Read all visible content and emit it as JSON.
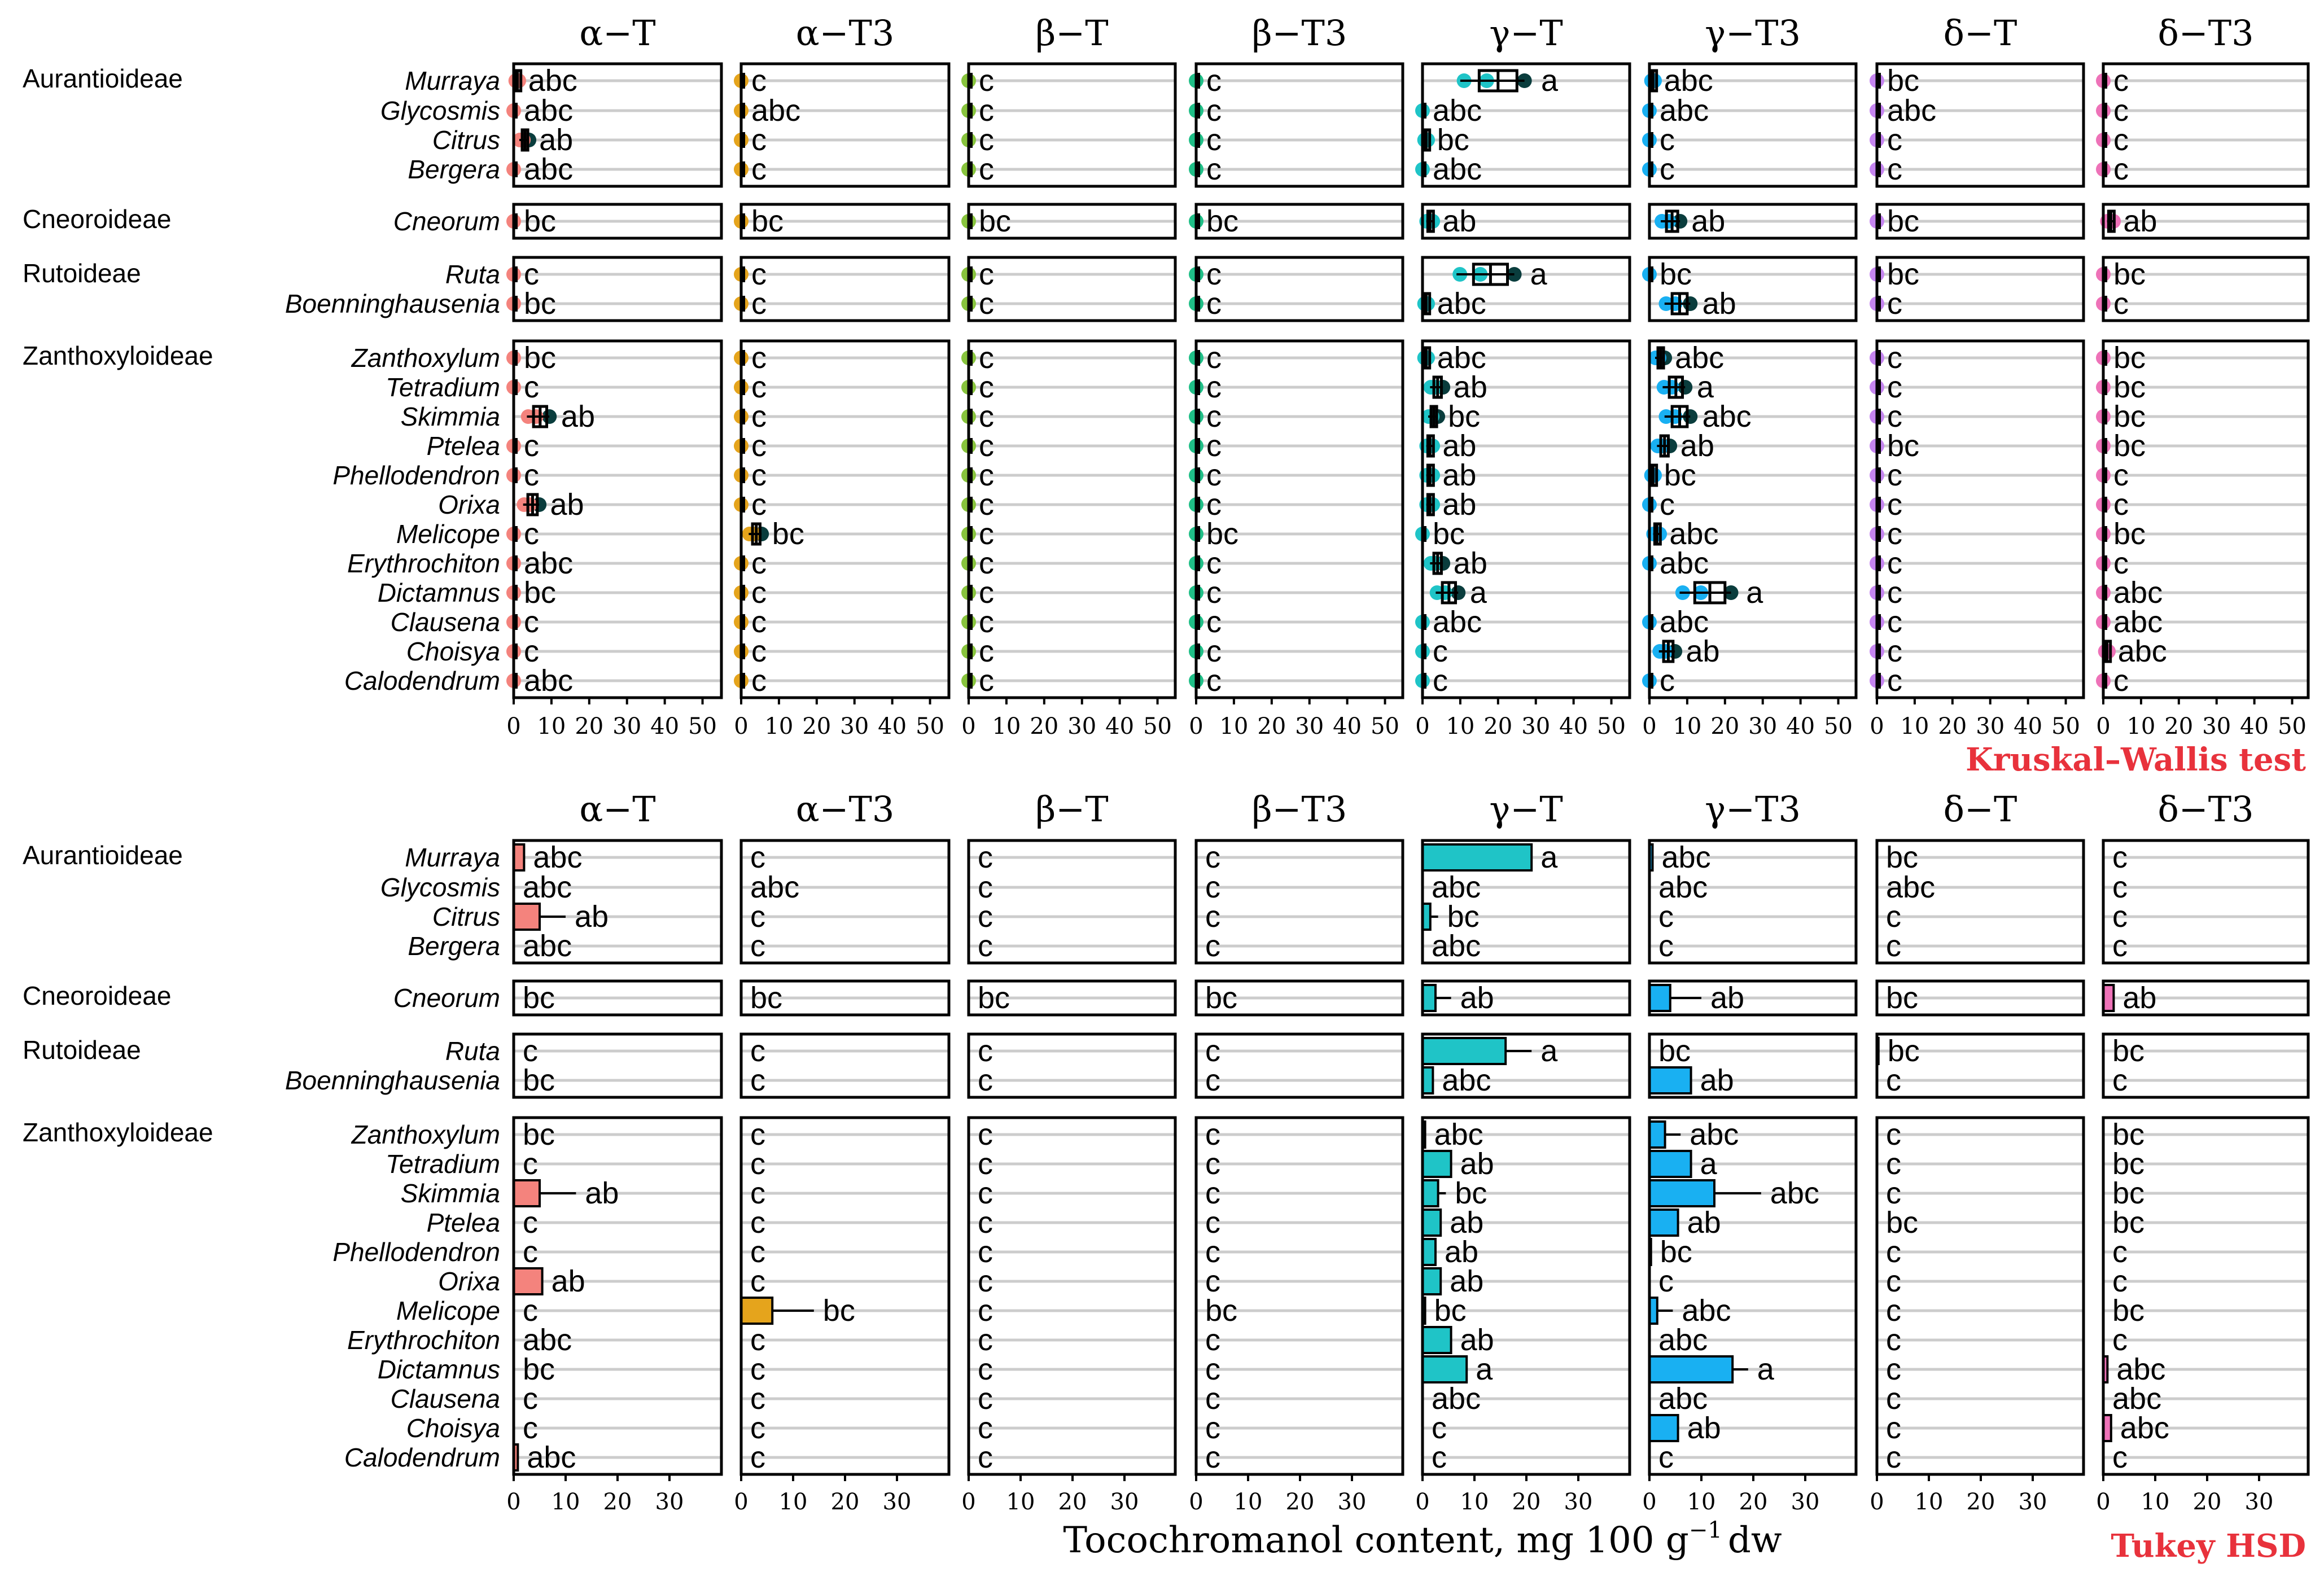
{
  "chart_data": [
    {
      "type": "box",
      "test_label": "Kruskal–Wallis test",
      "panels": [
        "α−T",
        "α−T3",
        "β−T",
        "β−T3",
        "γ−T",
        "γ−T3",
        "δ−T",
        "δ−T3"
      ],
      "xlim": [
        0,
        55
      ],
      "xticks": [
        0,
        10,
        20,
        30,
        40,
        50
      ],
      "groups": [
        {
          "name": "Aurantioideae",
          "genera": [
            "Murraya",
            "Glycosmis",
            "Citrus",
            "Bergera"
          ]
        },
        {
          "name": "Cneoroideae",
          "genera": [
            "Cneorum"
          ]
        },
        {
          "name": "Rutoideae",
          "genera": [
            "Ruta",
            "Boenninghausenia"
          ]
        },
        {
          "name": "Zanthoxyloideae",
          "genera": [
            "Zanthoxylum",
            "Tetradium",
            "Skimmia",
            "Ptelea",
            "Phellodendron",
            "Orixa",
            "Melicope",
            "Erythrochiton",
            "Dictamnus",
            "Clausena",
            "Choisya",
            "Calodendrum"
          ]
        }
      ],
      "values": [
        [
          [
            1,
            0,
            0,
            0,
            20,
            1,
            0,
            0
          ],
          [
            0,
            0,
            0,
            0,
            0,
            0,
            0,
            0
          ],
          [
            3,
            0,
            0,
            0,
            1,
            0,
            0,
            0
          ],
          [
            0,
            0,
            0,
            0,
            0,
            0,
            0,
            0
          ]
        ],
        [
          [
            0,
            0,
            0,
            0,
            2,
            6,
            0,
            2
          ]
        ],
        [
          [
            0,
            0,
            0,
            0,
            18,
            0,
            0,
            0
          ],
          [
            0,
            0,
            0,
            0,
            1,
            8,
            0,
            0
          ]
        ],
        [
          [
            0,
            0,
            0,
            0,
            1,
            3,
            0,
            0
          ],
          [
            0,
            0,
            0,
            0,
            4,
            7,
            0,
            0
          ],
          [
            7,
            0,
            0,
            0,
            3,
            8,
            0,
            0
          ],
          [
            0,
            0,
            0,
            0,
            2,
            4,
            0,
            0
          ],
          [
            0,
            0,
            0,
            0,
            2,
            1,
            0,
            0
          ],
          [
            5,
            0,
            0,
            0,
            2,
            0,
            0,
            0
          ],
          [
            0,
            4,
            0,
            0,
            0,
            2,
            0,
            0
          ],
          [
            0,
            0,
            0,
            0,
            4,
            0,
            0,
            0
          ],
          [
            0,
            0,
            0,
            0,
            7,
            16,
            0,
            0
          ],
          [
            0,
            0,
            0,
            0,
            0,
            0,
            0,
            0
          ],
          [
            0,
            0,
            0,
            0,
            0,
            5,
            0,
            1
          ],
          [
            0,
            0,
            0,
            0,
            0,
            0,
            0,
            0
          ]
        ]
      ],
      "letters": [
        [
          [
            "abc",
            "c",
            "c",
            "c",
            "a",
            "abc",
            "bc",
            "c"
          ],
          [
            "abc",
            "abc",
            "c",
            "c",
            "abc",
            "abc",
            "abc",
            "c"
          ],
          [
            "ab",
            "c",
            "c",
            "c",
            "bc",
            "c",
            "c",
            "c"
          ],
          [
            "abc",
            "c",
            "c",
            "c",
            "abc",
            "c",
            "c",
            "c"
          ]
        ],
        [
          [
            "bc",
            "bc",
            "bc",
            "bc",
            "ab",
            "ab",
            "bc",
            "ab"
          ]
        ],
        [
          [
            "c",
            "c",
            "c",
            "c",
            "a",
            "bc",
            "bc",
            "bc"
          ],
          [
            "bc",
            "c",
            "c",
            "c",
            "abc",
            "ab",
            "c",
            "c"
          ]
        ],
        [
          [
            "bc",
            "c",
            "c",
            "c",
            "abc",
            "abc",
            "c",
            "bc"
          ],
          [
            "c",
            "c",
            "c",
            "c",
            "ab",
            "a",
            "c",
            "bc"
          ],
          [
            "ab",
            "c",
            "c",
            "c",
            "bc",
            "abc",
            "c",
            "bc"
          ],
          [
            "c",
            "c",
            "c",
            "c",
            "ab",
            "ab",
            "bc",
            "bc"
          ],
          [
            "c",
            "c",
            "c",
            "c",
            "ab",
            "bc",
            "c",
            "c"
          ],
          [
            "ab",
            "c",
            "c",
            "c",
            "ab",
            "c",
            "c",
            "c"
          ],
          [
            "c",
            "bc",
            "c",
            "bc",
            "bc",
            "abc",
            "c",
            "bc"
          ],
          [
            "abc",
            "c",
            "c",
            "c",
            "ab",
            "abc",
            "c",
            "c"
          ],
          [
            "bc",
            "c",
            "c",
            "c",
            "a",
            "a",
            "c",
            "abc"
          ],
          [
            "c",
            "c",
            "c",
            "c",
            "abc",
            "abc",
            "c",
            "abc"
          ],
          [
            "c",
            "c",
            "c",
            "c",
            "c",
            "ab",
            "c",
            "abc"
          ],
          [
            "abc",
            "c",
            "c",
            "c",
            "c",
            "c",
            "c",
            "c"
          ]
        ]
      ]
    },
    {
      "type": "bar",
      "test_label": "Tukey HSD",
      "panels": [
        "α−T",
        "α−T3",
        "β−T",
        "β−T3",
        "γ−T",
        "γ−T3",
        "δ−T",
        "δ−T3"
      ],
      "xlim": [
        0,
        40
      ],
      "xticks": [
        0,
        10,
        20,
        30
      ],
      "xlabel": "Tocochromanol content, mg 100 g",
      "xlabel_sup": "−1",
      "xlabel_tail": "dw",
      "groups": [
        {
          "name": "Aurantioideae",
          "genera": [
            "Murraya",
            "Glycosmis",
            "Citrus",
            "Bergera"
          ]
        },
        {
          "name": "Cneoroideae",
          "genera": [
            "Cneorum"
          ]
        },
        {
          "name": "Rutoideae",
          "genera": [
            "Ruta",
            "Boenninghausenia"
          ]
        },
        {
          "name": "Zanthoxyloideae",
          "genera": [
            "Zanthoxylum",
            "Tetradium",
            "Skimmia",
            "Ptelea",
            "Phellodendron",
            "Orixa",
            "Melicope",
            "Erythrochiton",
            "Dictamnus",
            "Clausena",
            "Choisya",
            "Calodendrum"
          ]
        }
      ],
      "means": [
        [
          [
            2,
            0,
            0,
            0,
            21,
            0.6,
            0,
            0
          ],
          [
            0,
            0,
            0,
            0,
            0,
            0,
            0,
            0
          ],
          [
            5,
            0,
            0,
            0,
            1.5,
            0,
            0,
            0
          ],
          [
            0,
            0,
            0,
            0,
            0,
            0,
            0,
            0
          ]
        ],
        [
          [
            0,
            0,
            0,
            0,
            2.5,
            4,
            0,
            2
          ]
        ],
        [
          [
            0,
            0,
            0,
            0,
            16,
            0,
            0.3,
            0
          ],
          [
            0,
            0,
            0,
            0,
            2,
            8,
            0,
            0
          ]
        ],
        [
          [
            0,
            0,
            0,
            0,
            0.5,
            3,
            0,
            0
          ],
          [
            0,
            0,
            0,
            0,
            5.5,
            8,
            0,
            0
          ],
          [
            5,
            0,
            0,
            0,
            3,
            12.5,
            0,
            0
          ],
          [
            0,
            0,
            0,
            0,
            3.5,
            5.5,
            0,
            0
          ],
          [
            0,
            0,
            0,
            0,
            2.5,
            0.3,
            0,
            0
          ],
          [
            5.5,
            0,
            0,
            0,
            3.5,
            0,
            0,
            0
          ],
          [
            0,
            6,
            0,
            0,
            0.5,
            1.5,
            0,
            0
          ],
          [
            0,
            0,
            0,
            0,
            5.5,
            0,
            0,
            0
          ],
          [
            0,
            0,
            0,
            0,
            8.5,
            16,
            0,
            0.8
          ],
          [
            0,
            0,
            0,
            0,
            0,
            0,
            0,
            0
          ],
          [
            0,
            0,
            0,
            0,
            0,
            5.5,
            0,
            1.5
          ],
          [
            0.8,
            0,
            0,
            0,
            0,
            0,
            0,
            0
          ]
        ]
      ],
      "errors": [
        [
          [
            0,
            0,
            0,
            0,
            0,
            0,
            0,
            0
          ],
          [
            0,
            0,
            0,
            0,
            0,
            0,
            0,
            0
          ],
          [
            5,
            0,
            0,
            0,
            1.5,
            0,
            0,
            0
          ],
          [
            0,
            0,
            0,
            0,
            0,
            0,
            0,
            0
          ]
        ],
        [
          [
            0,
            0,
            0,
            0,
            3,
            6,
            0,
            0
          ]
        ],
        [
          [
            0,
            0,
            0,
            0,
            5,
            0,
            0,
            0
          ],
          [
            0,
            0,
            0,
            0,
            0,
            0,
            0,
            0
          ]
        ],
        [
          [
            0,
            0,
            0,
            0,
            0,
            3,
            0,
            0
          ],
          [
            0,
            0,
            0,
            0,
            0,
            0,
            0,
            0
          ],
          [
            7,
            0,
            0,
            0,
            1.5,
            9,
            0,
            0
          ],
          [
            0,
            0,
            0,
            0,
            0,
            0,
            0,
            0
          ],
          [
            0,
            0,
            0,
            0,
            0,
            0,
            0,
            0
          ],
          [
            0,
            0,
            0,
            0,
            0,
            0,
            0,
            0
          ],
          [
            0,
            8,
            0,
            0,
            0,
            3,
            0,
            0
          ],
          [
            0,
            0,
            0,
            0,
            0,
            0,
            0,
            0
          ],
          [
            0,
            0,
            0,
            0,
            0,
            3,
            0,
            0
          ],
          [
            0,
            0,
            0,
            0,
            0,
            0,
            0,
            0
          ],
          [
            0,
            0,
            0,
            0,
            0,
            0,
            0,
            0
          ],
          [
            0,
            0,
            0,
            0,
            0,
            0,
            0,
            0
          ]
        ]
      ],
      "letters": [
        [
          [
            "abc",
            "c",
            "c",
            "c",
            "a",
            "abc",
            "bc",
            "c"
          ],
          [
            "abc",
            "abc",
            "c",
            "c",
            "abc",
            "abc",
            "abc",
            "c"
          ],
          [
            "ab",
            "c",
            "c",
            "c",
            "bc",
            "c",
            "c",
            "c"
          ],
          [
            "abc",
            "c",
            "c",
            "c",
            "abc",
            "c",
            "c",
            "c"
          ]
        ],
        [
          [
            "bc",
            "bc",
            "bc",
            "bc",
            "ab",
            "ab",
            "bc",
            "ab"
          ]
        ],
        [
          [
            "c",
            "c",
            "c",
            "c",
            "a",
            "bc",
            "bc",
            "bc"
          ],
          [
            "bc",
            "c",
            "c",
            "c",
            "abc",
            "ab",
            "c",
            "c"
          ]
        ],
        [
          [
            "bc",
            "c",
            "c",
            "c",
            "abc",
            "abc",
            "c",
            "bc"
          ],
          [
            "c",
            "c",
            "c",
            "c",
            "ab",
            "a",
            "c",
            "bc"
          ],
          [
            "ab",
            "c",
            "c",
            "c",
            "bc",
            "abc",
            "c",
            "bc"
          ],
          [
            "c",
            "c",
            "c",
            "c",
            "ab",
            "ab",
            "bc",
            "bc"
          ],
          [
            "c",
            "c",
            "c",
            "c",
            "ab",
            "bc",
            "c",
            "c"
          ],
          [
            "ab",
            "c",
            "c",
            "c",
            "ab",
            "c",
            "c",
            "c"
          ],
          [
            "c",
            "bc",
            "c",
            "bc",
            "bc",
            "abc",
            "c",
            "bc"
          ],
          [
            "abc",
            "c",
            "c",
            "c",
            "ab",
            "abc",
            "c",
            "c"
          ],
          [
            "bc",
            "c",
            "c",
            "c",
            "a",
            "a",
            "c",
            "abc"
          ],
          [
            "c",
            "c",
            "c",
            "c",
            "abc",
            "abc",
            "c",
            "abc"
          ],
          [
            "c",
            "c",
            "c",
            "c",
            "c",
            "ab",
            "c",
            "abc"
          ],
          [
            "abc",
            "c",
            "c",
            "c",
            "c",
            "c",
            "c",
            "c"
          ]
        ]
      ]
    }
  ],
  "colors": {
    "panels": [
      "#f4837d",
      "#e5a41c",
      "#88c43d",
      "#1fbf87",
      "#1fc4c7",
      "#19b0f2",
      "#c585f0",
      "#ee72b8"
    ],
    "dark": "#0a3d3d",
    "brown": "#5a2a2a",
    "grid": "#cccccc",
    "test_label": "#e8323c"
  }
}
